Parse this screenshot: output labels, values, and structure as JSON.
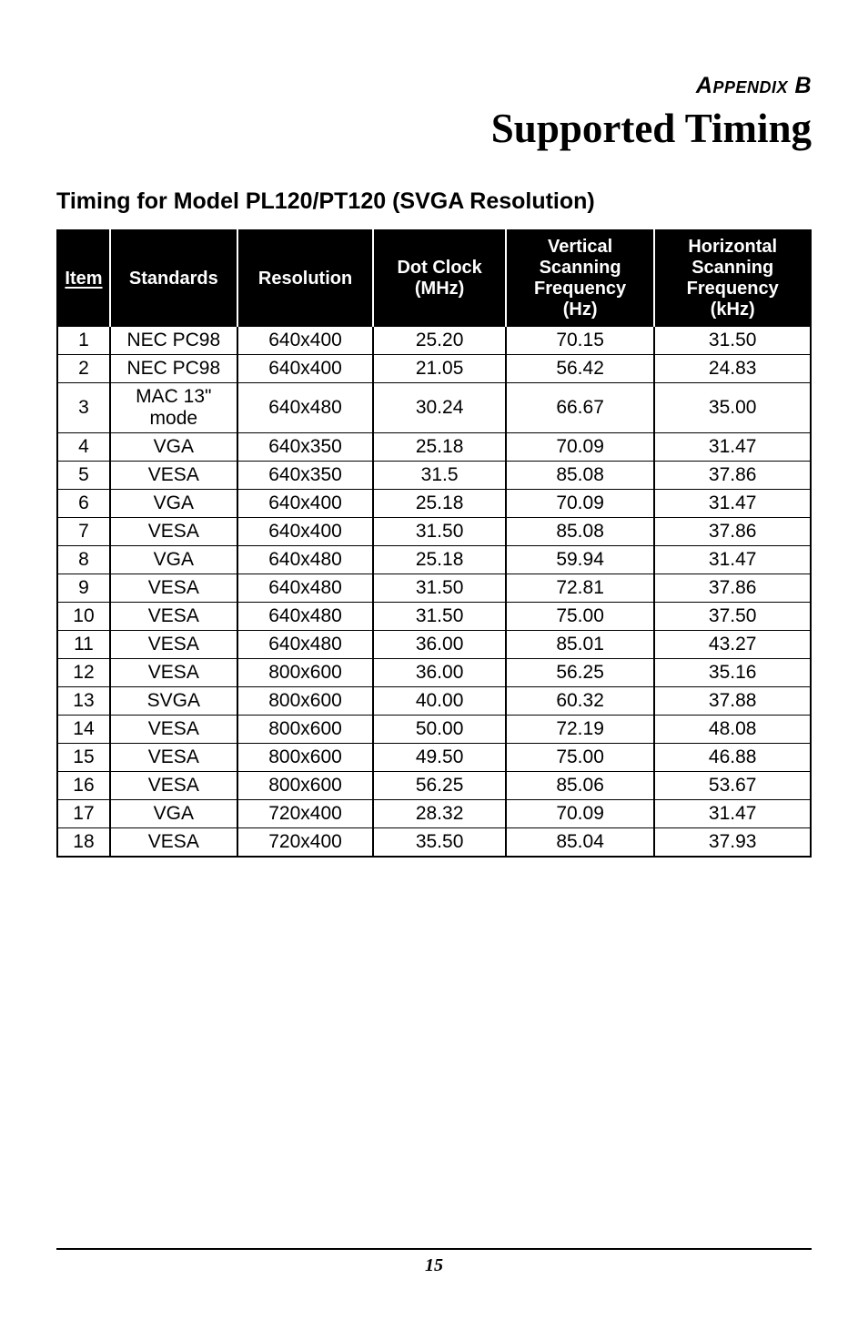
{
  "appendix_label": "Appendix B",
  "main_title": "Supported Timing",
  "section_title": "Timing for Model PL120/PT120 (SVGA Resolution)",
  "page_number": "15",
  "table": {
    "columns": [
      {
        "label": "Item"
      },
      {
        "label": "Standards"
      },
      {
        "label": "Resolution"
      },
      {
        "label": "Dot Clock\n(MHz)"
      },
      {
        "label": "Vertical\nScanning\nFrequency\n(Hz)"
      },
      {
        "label": "Horizontal\nScanning\nFrequency\n(kHz)"
      }
    ],
    "rows": [
      [
        "1",
        "NEC PC98",
        "640x400",
        "25.20",
        "70.15",
        "31.50"
      ],
      [
        "2",
        "NEC PC98",
        "640x400",
        "21.05",
        "56.42",
        "24.83"
      ],
      [
        "3",
        "MAC 13\"\nmode",
        "640x480",
        "30.24",
        "66.67",
        "35.00"
      ],
      [
        "4",
        "VGA",
        "640x350",
        "25.18",
        "70.09",
        "31.47"
      ],
      [
        "5",
        "VESA",
        "640x350",
        "31.5",
        "85.08",
        "37.86"
      ],
      [
        "6",
        "VGA",
        "640x400",
        "25.18",
        "70.09",
        "31.47"
      ],
      [
        "7",
        "VESA",
        "640x400",
        "31.50",
        "85.08",
        "37.86"
      ],
      [
        "8",
        "VGA",
        "640x480",
        "25.18",
        "59.94",
        "31.47"
      ],
      [
        "9",
        "VESA",
        "640x480",
        "31.50",
        "72.81",
        "37.86"
      ],
      [
        "10",
        "VESA",
        "640x480",
        "31.50",
        "75.00",
        "37.50"
      ],
      [
        "11",
        "VESA",
        "640x480",
        "36.00",
        "85.01",
        "43.27"
      ],
      [
        "12",
        "VESA",
        "800x600",
        "36.00",
        "56.25",
        "35.16"
      ],
      [
        "13",
        "SVGA",
        "800x600",
        "40.00",
        "60.32",
        "37.88"
      ],
      [
        "14",
        "VESA",
        "800x600",
        "50.00",
        "72.19",
        "48.08"
      ],
      [
        "15",
        "VESA",
        "800x600",
        "49.50",
        "75.00",
        "46.88"
      ],
      [
        "16",
        "VESA",
        "800x600",
        "56.25",
        "85.06",
        "53.67"
      ],
      [
        "17",
        "VGA",
        "720x400",
        "28.32",
        "70.09",
        "31.47"
      ],
      [
        "18",
        "VESA",
        "720x400",
        "35.50",
        "85.04",
        "37.93"
      ]
    ]
  },
  "styling": {
    "page_bg": "#ffffff",
    "text_color": "#000000",
    "header_bg": "#000000",
    "header_text": "#ffffff",
    "border_color": "#000000",
    "appendix_fontsize": 25,
    "main_title_fontsize": 45,
    "section_title_fontsize": 25,
    "table_header_fontsize": 20,
    "table_body_fontsize": 21,
    "page_number_fontsize": 20
  }
}
